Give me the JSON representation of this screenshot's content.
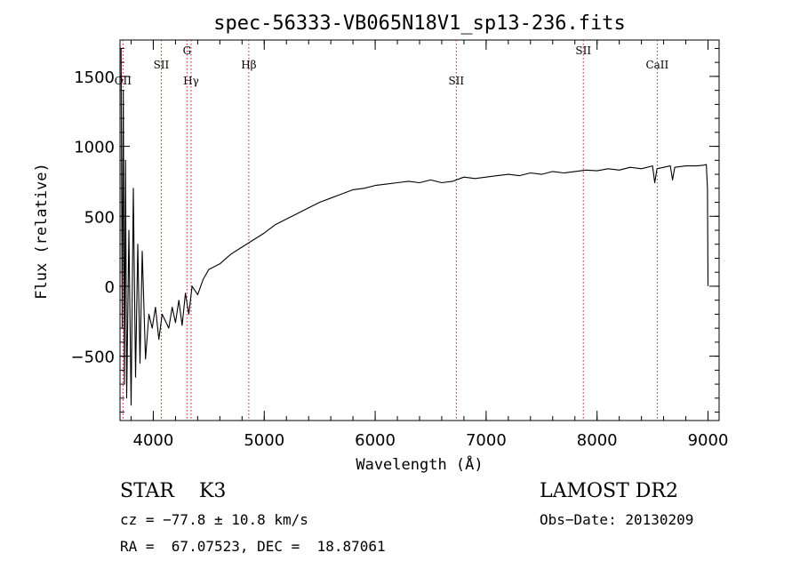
{
  "chart_data": {
    "type": "line",
    "title": "spec-56333-VB065N18V1_sp13-236.fits",
    "xlabel": "Wavelength (Å)",
    "ylabel": "Flux (relative)",
    "xlim": [
      3700,
      9100
    ],
    "ylim": [
      -960,
      1760
    ],
    "xticks": [
      {
        "v": 4000,
        "label": "4000"
      },
      {
        "v": 5000,
        "label": "5000"
      },
      {
        "v": 6000,
        "label": "6000"
      },
      {
        "v": 7000,
        "label": "7000"
      },
      {
        "v": 8000,
        "label": "8000"
      },
      {
        "v": 9000,
        "label": "9000"
      }
    ],
    "yticks": [
      {
        "v": -500,
        "label": "−500"
      },
      {
        "v": 0,
        "label": "0"
      },
      {
        "v": 500,
        "label": "500"
      },
      {
        "v": 1000,
        "label": "1000"
      },
      {
        "v": 1500,
        "label": "1500"
      }
    ],
    "x_minor_step": 200,
    "y_minor_step": 100,
    "grid": false,
    "series": [
      {
        "color": "#000000",
        "x": [
          3710,
          3720,
          3730,
          3740,
          3750,
          3760,
          3780,
          3800,
          3820,
          3840,
          3860,
          3880,
          3900,
          3930,
          3960,
          3990,
          4020,
          4050,
          4080,
          4110,
          4140,
          4170,
          4200,
          4230,
          4260,
          4290,
          4320,
          4350,
          4400,
          4450,
          4500,
          4600,
          4700,
          4800,
          4900,
          5000,
          5100,
          5200,
          5300,
          5400,
          5500,
          5600,
          5700,
          5800,
          5900,
          6000,
          6100,
          6200,
          6300,
          6400,
          6500,
          6600,
          6700,
          6800,
          6900,
          7000,
          7100,
          7200,
          7300,
          7400,
          7500,
          7600,
          7700,
          7800,
          7900,
          8000,
          8100,
          8200,
          8300,
          8400,
          8500,
          8520,
          8540,
          8600,
          8660,
          8680,
          8700,
          8800,
          8900,
          8960,
          8985,
          8995,
          9000
        ],
        "y": [
          1700,
          -300,
          1400,
          -700,
          900,
          -800,
          400,
          -850,
          700,
          -650,
          300,
          -550,
          250,
          -520,
          -200,
          -300,
          -150,
          -380,
          -200,
          -250,
          -300,
          -150,
          -260,
          -100,
          -280,
          -50,
          -200,
          0,
          -60,
          50,
          120,
          160,
          230,
          280,
          330,
          380,
          440,
          480,
          520,
          560,
          600,
          630,
          660,
          690,
          700,
          720,
          730,
          740,
          750,
          740,
          760,
          740,
          750,
          780,
          770,
          780,
          790,
          800,
          790,
          810,
          800,
          820,
          810,
          820,
          830,
          825,
          840,
          830,
          850,
          840,
          860,
          740,
          840,
          850,
          860,
          760,
          850,
          860,
          860,
          865,
          870,
          700,
          0
        ]
      }
    ],
    "lines": [
      {
        "name": "OII",
        "wavelength": 3727,
        "row": "bottom"
      },
      {
        "name": "SII",
        "wavelength": 4072,
        "row": "top"
      },
      {
        "name": "G",
        "wavelength": 4304,
        "row": "top2"
      },
      {
        "name": "Hγ",
        "wavelength": 4341,
        "row": "bottom"
      },
      {
        "name": "Hβ",
        "wavelength": 4861,
        "row": "top"
      },
      {
        "name": "SII",
        "wavelength": 6731,
        "row": "bottom"
      },
      {
        "name": "SII",
        "wavelength": 7876,
        "row": "top2"
      },
      {
        "name": "CaII",
        "wavelength": 8542,
        "row": "top"
      }
    ],
    "line_color": "#b22222"
  },
  "info": {
    "object": "STAR    K3",
    "survey": "LAMOST DR2",
    "cz": "cz = −77.8 ± 10.8 km/s",
    "obs_date": "Obs−Date: 20130209",
    "radec": "RA =  67.07523, DEC =  18.87061"
  }
}
